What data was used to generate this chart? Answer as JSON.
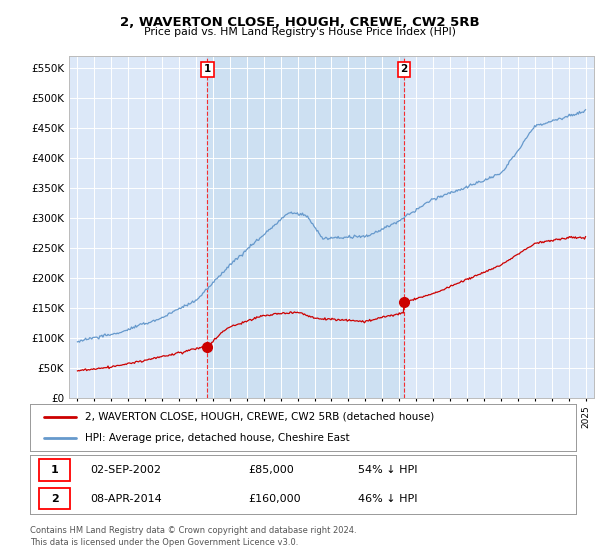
{
  "title": "2, WAVERTON CLOSE, HOUGH, CREWE, CW2 5RB",
  "subtitle": "Price paid vs. HM Land Registry's House Price Index (HPI)",
  "ylabel_ticks": [
    "£0",
    "£50K",
    "£100K",
    "£150K",
    "£200K",
    "£250K",
    "£300K",
    "£350K",
    "£400K",
    "£450K",
    "£500K",
    "£550K"
  ],
  "ytick_values": [
    0,
    50000,
    100000,
    150000,
    200000,
    250000,
    300000,
    350000,
    400000,
    450000,
    500000,
    550000
  ],
  "xlim_min": 1994.5,
  "xlim_max": 2025.5,
  "ylim_min": 0,
  "ylim_max": 570000,
  "point1_year": 2002.67,
  "point1_price": 85000,
  "point1_label": "1",
  "point2_year": 2014.27,
  "point2_price": 160000,
  "point2_label": "2",
  "legend_red": "2, WAVERTON CLOSE, HOUGH, CREWE, CW2 5RB (detached house)",
  "legend_blue": "HPI: Average price, detached house, Cheshire East",
  "row1_label": "1",
  "row1_date": "02-SEP-2002",
  "row1_price": "£85,000",
  "row1_hpi": "54% ↓ HPI",
  "row2_label": "2",
  "row2_date": "08-APR-2014",
  "row2_price": "£160,000",
  "row2_hpi": "46% ↓ HPI",
  "footer1": "Contains HM Land Registry data © Crown copyright and database right 2024.",
  "footer2": "This data is licensed under the Open Government Licence v3.0.",
  "red_color": "#cc0000",
  "blue_color": "#6699cc",
  "plot_bg": "#dce8f8",
  "shade_color": "#c8ddf0",
  "fig_bg": "#ffffff"
}
